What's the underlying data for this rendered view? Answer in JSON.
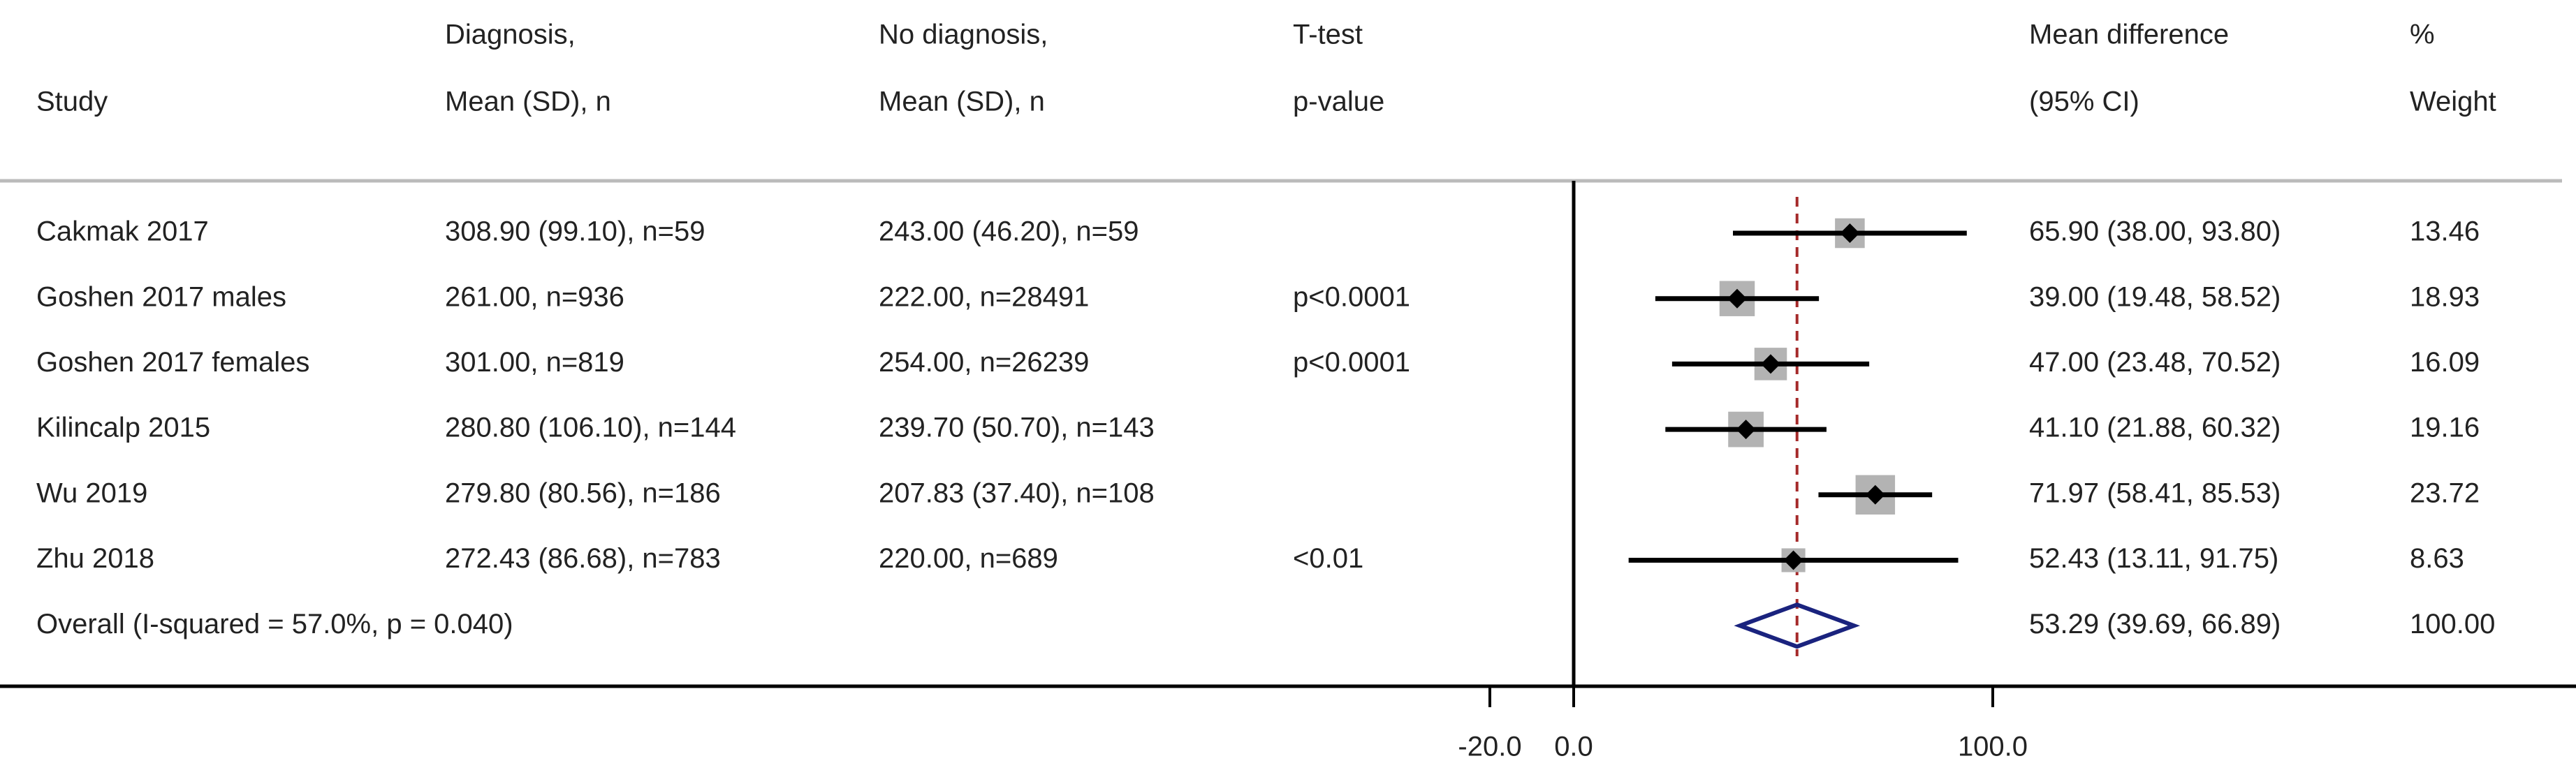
{
  "chart_data": {
    "type": "forest",
    "headers": [
      [
        "Study"
      ],
      [
        "Diagnosis,",
        "Mean (SD), n"
      ],
      [
        "No diagnosis,",
        "Mean (SD), n"
      ],
      [
        "T-test",
        "p-value"
      ],
      [
        "Mean difference",
        "(95% CI)"
      ],
      [
        "%",
        "Weight"
      ]
    ],
    "studies": [
      {
        "name": "Cakmak 2017",
        "diagnosis": "308.90 (99.10), n=59",
        "no_diagnosis": "243.00 (46.20), n=59",
        "p_value": null,
        "value": 65.9,
        "ci": [
          38.0,
          93.8
        ],
        "value_label": "65.90 (38.00, 93.80)",
        "weight": 13.46
      },
      {
        "name": "Goshen 2017 males",
        "diagnosis": "261.00, n=936",
        "no_diagnosis": "222.00, n=28491",
        "p_value": "p<0.0001",
        "value": 39.0,
        "ci": [
          19.48,
          58.52
        ],
        "value_label": "39.00 (19.48, 58.52)",
        "weight": 18.93
      },
      {
        "name": "Goshen 2017 females",
        "diagnosis": "301.00, n=819",
        "no_diagnosis": "254.00, n=26239",
        "p_value": "p<0.0001",
        "value": 47.0,
        "ci": [
          23.48,
          70.52
        ],
        "value_label": "47.00 (23.48, 70.52)",
        "weight": 16.09
      },
      {
        "name": "Kilincalp 2015",
        "diagnosis": "280.80 (106.10), n=144",
        "no_diagnosis": "239.70 (50.70), n=143",
        "p_value": null,
        "value": 41.1,
        "ci": [
          21.88,
          60.32
        ],
        "value_label": "41.10 (21.88, 60.32)",
        "weight": 19.16
      },
      {
        "name": "Wu 2019",
        "diagnosis": "279.80 (80.56), n=186",
        "no_diagnosis": "207.83 (37.40), n=108",
        "p_value": null,
        "value": 71.97,
        "ci": [
          58.41,
          85.53
        ],
        "value_label": "71.97 (58.41, 85.53)",
        "weight": 23.72
      },
      {
        "name": "Zhu 2018",
        "diagnosis": "272.43 (86.68), n=783",
        "no_diagnosis": "220.00, n=689",
        "p_value": "<0.01",
        "value": 52.43,
        "ci": [
          13.11,
          91.75
        ],
        "value_label": "52.43 (13.11, 91.75)",
        "weight": 8.63
      }
    ],
    "overall": {
      "name": "Overall (I-squared = 57.0%, p = 0.040)",
      "value": 53.29,
      "ci": [
        39.69,
        66.89
      ],
      "value_label": "53.29 (39.69, 66.89)",
      "weight": 100,
      "weight_label": "100.00"
    },
    "xlim": [
      -20,
      100
    ],
    "xticks": [
      {
        "value": -20,
        "label": "-20.0"
      },
      {
        "value": 0,
        "label": "0.0"
      },
      {
        "value": 100,
        "label": "100.0"
      }
    ]
  }
}
